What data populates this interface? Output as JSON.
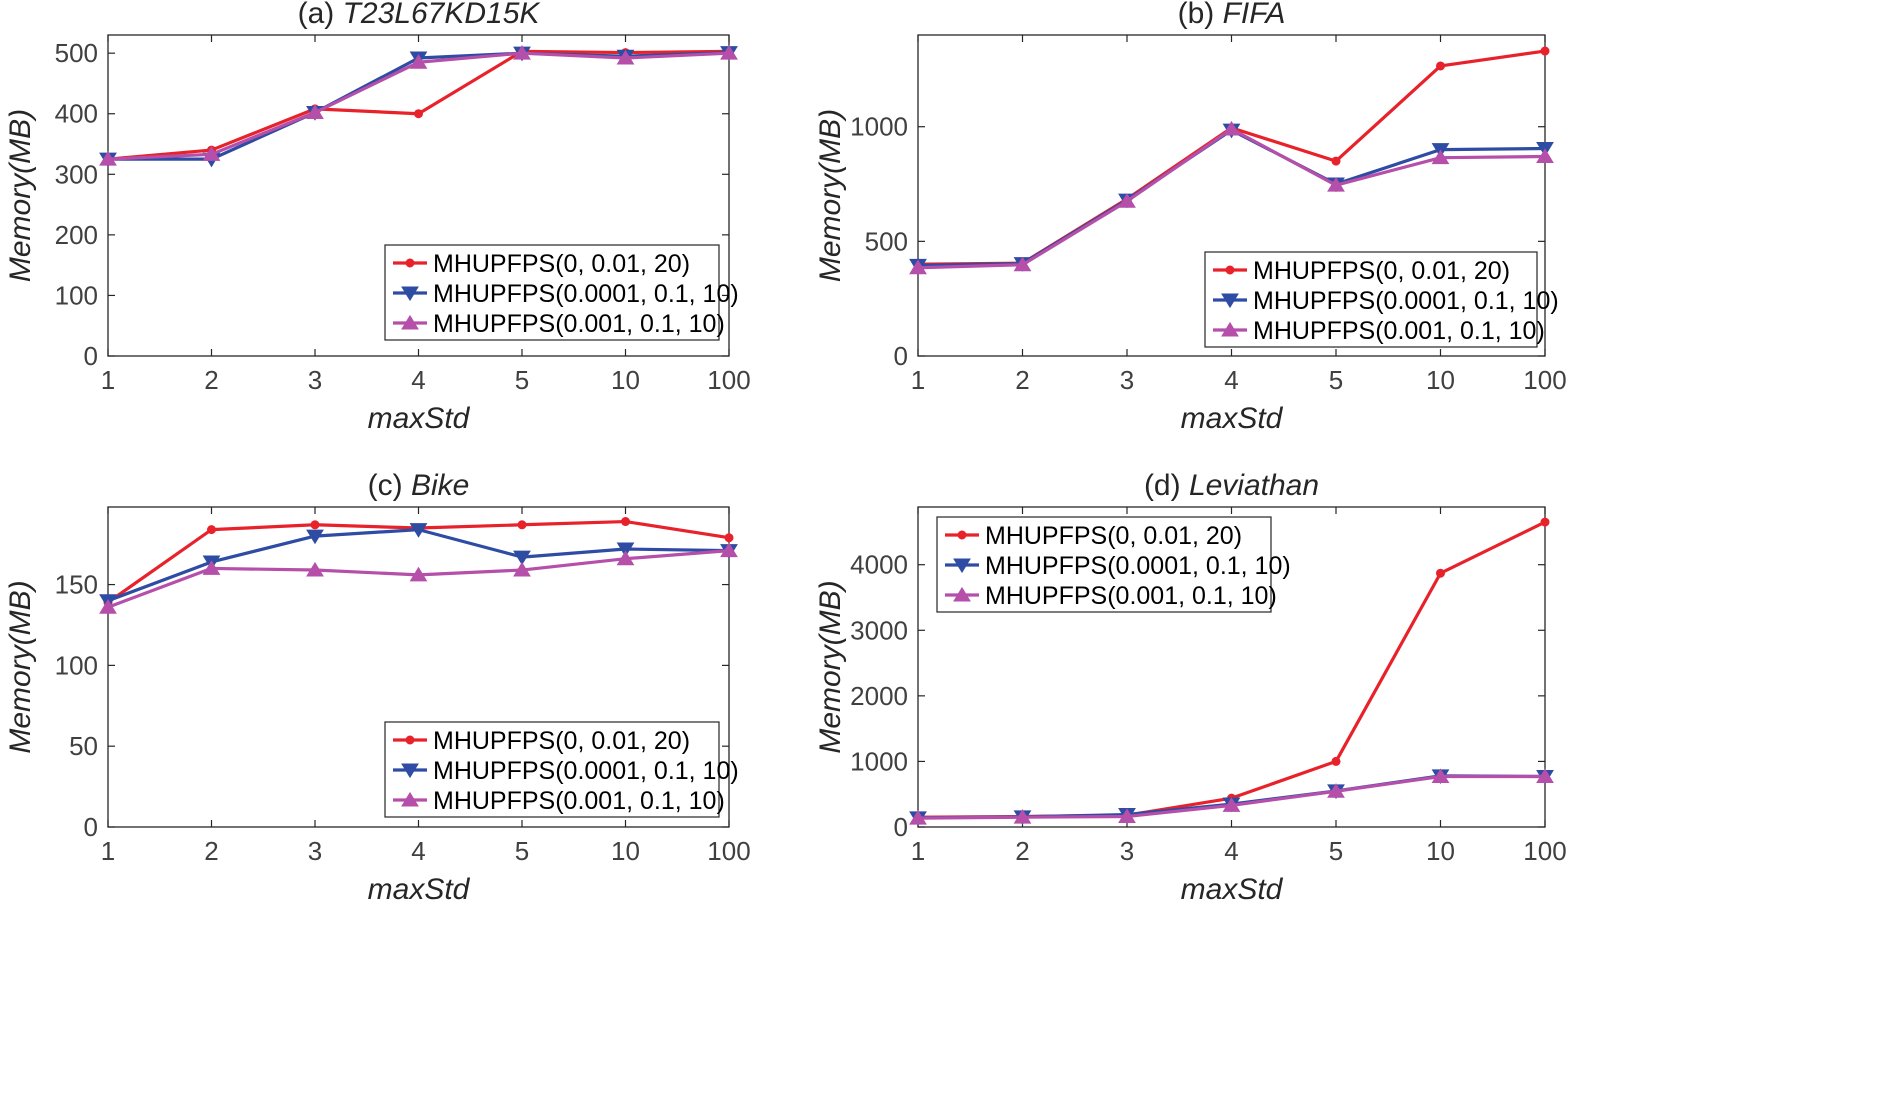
{
  "chart_data": [
    {
      "type": "line",
      "panel": "(a)",
      "dataset": "T23L67KD15K",
      "xlabel": "maxStd",
      "ylabel": "Memory(MB)",
      "categories": [
        "1",
        "2",
        "3",
        "4",
        "5",
        "10",
        "100"
      ],
      "ylim": [
        0,
        530
      ],
      "yticks": [
        0,
        100,
        200,
        300,
        400,
        500
      ],
      "legend_position": "bottom-right",
      "series": [
        {
          "name": "MHUPFPS(0, 0.01, 20)",
          "color": "#e8222a",
          "marker": "dot",
          "values": [
            325,
            340,
            408,
            400,
            503,
            501,
            503
          ]
        },
        {
          "name": "MHUPFPS(0.0001, 0.1, 10)",
          "color": "#2e4ca3",
          "marker": "triangle-down",
          "values": [
            325,
            325,
            402,
            492,
            500,
            495,
            501
          ]
        },
        {
          "name": "MHUPFPS(0.001, 0.1, 10)",
          "color": "#b54faa",
          "marker": "triangle-up",
          "values": [
            325,
            333,
            402,
            485,
            500,
            492,
            500
          ]
        }
      ]
    },
    {
      "type": "line",
      "panel": "(b)",
      "dataset": "FIFA",
      "xlabel": "maxStd",
      "ylabel": "Memory(MB)",
      "categories": [
        "1",
        "2",
        "3",
        "4",
        "5",
        "10",
        "100"
      ],
      "ylim": [
        0,
        1400
      ],
      "yticks": [
        0,
        500,
        1000
      ],
      "legend_position": "bottom-right",
      "series": [
        {
          "name": "MHUPFPS(0, 0.01, 20)",
          "color": "#e8222a",
          "marker": "dot",
          "values": [
            400,
            405,
            685,
            995,
            850,
            1265,
            1330
          ]
        },
        {
          "name": "MHUPFPS(0.0001, 0.1, 10)",
          "color": "#2e4ca3",
          "marker": "triangle-down",
          "values": [
            395,
            403,
            680,
            985,
            750,
            900,
            905
          ]
        },
        {
          "name": "MHUPFPS(0.001, 0.1, 10)",
          "color": "#b54faa",
          "marker": "triangle-up",
          "values": [
            385,
            398,
            675,
            990,
            745,
            865,
            870
          ]
        }
      ]
    },
    {
      "type": "line",
      "panel": "(c)",
      "dataset": "Bike",
      "xlabel": "maxStd",
      "ylabel": "Memory(MB)",
      "categories": [
        "1",
        "2",
        "3",
        "4",
        "5",
        "10",
        "100"
      ],
      "ylim": [
        0,
        198
      ],
      "yticks": [
        0,
        50,
        100,
        150
      ],
      "legend_position": "bottom-right",
      "series": [
        {
          "name": "MHUPFPS(0, 0.01, 20)",
          "color": "#e8222a",
          "marker": "dot",
          "values": [
            139,
            184,
            187,
            185,
            187,
            189,
            179
          ]
        },
        {
          "name": "MHUPFPS(0.0001, 0.1, 10)",
          "color": "#2e4ca3",
          "marker": "triangle-down",
          "values": [
            140,
            164,
            180,
            184,
            167,
            172,
            171
          ]
        },
        {
          "name": "MHUPFPS(0.001, 0.1, 10)",
          "color": "#b54faa",
          "marker": "triangle-up",
          "values": [
            136,
            160,
            159,
            156,
            159,
            166,
            171
          ]
        }
      ]
    },
    {
      "type": "line",
      "panel": "(d)",
      "dataset": "Leviathan",
      "xlabel": "maxStd",
      "ylabel": "Memory(MB)",
      "categories": [
        "1",
        "2",
        "3",
        "4",
        "5",
        "10",
        "100"
      ],
      "ylim": [
        0,
        4880
      ],
      "yticks": [
        0,
        1000,
        2000,
        3000,
        4000
      ],
      "legend_position": "top-left",
      "series": [
        {
          "name": "MHUPFPS(0, 0.01, 20)",
          "color": "#e8222a",
          "marker": "dot",
          "values": [
            150,
            160,
            180,
            440,
            1000,
            3870,
            4650
          ]
        },
        {
          "name": "MHUPFPS(0.0001, 0.1, 10)",
          "color": "#2e4ca3",
          "marker": "triangle-down",
          "values": [
            140,
            155,
            190,
            350,
            550,
            780,
            770
          ]
        },
        {
          "name": "MHUPFPS(0.001, 0.1, 10)",
          "color": "#b54faa",
          "marker": "triangle-up",
          "values": [
            135,
            150,
            160,
            330,
            545,
            770,
            770
          ]
        }
      ]
    }
  ]
}
